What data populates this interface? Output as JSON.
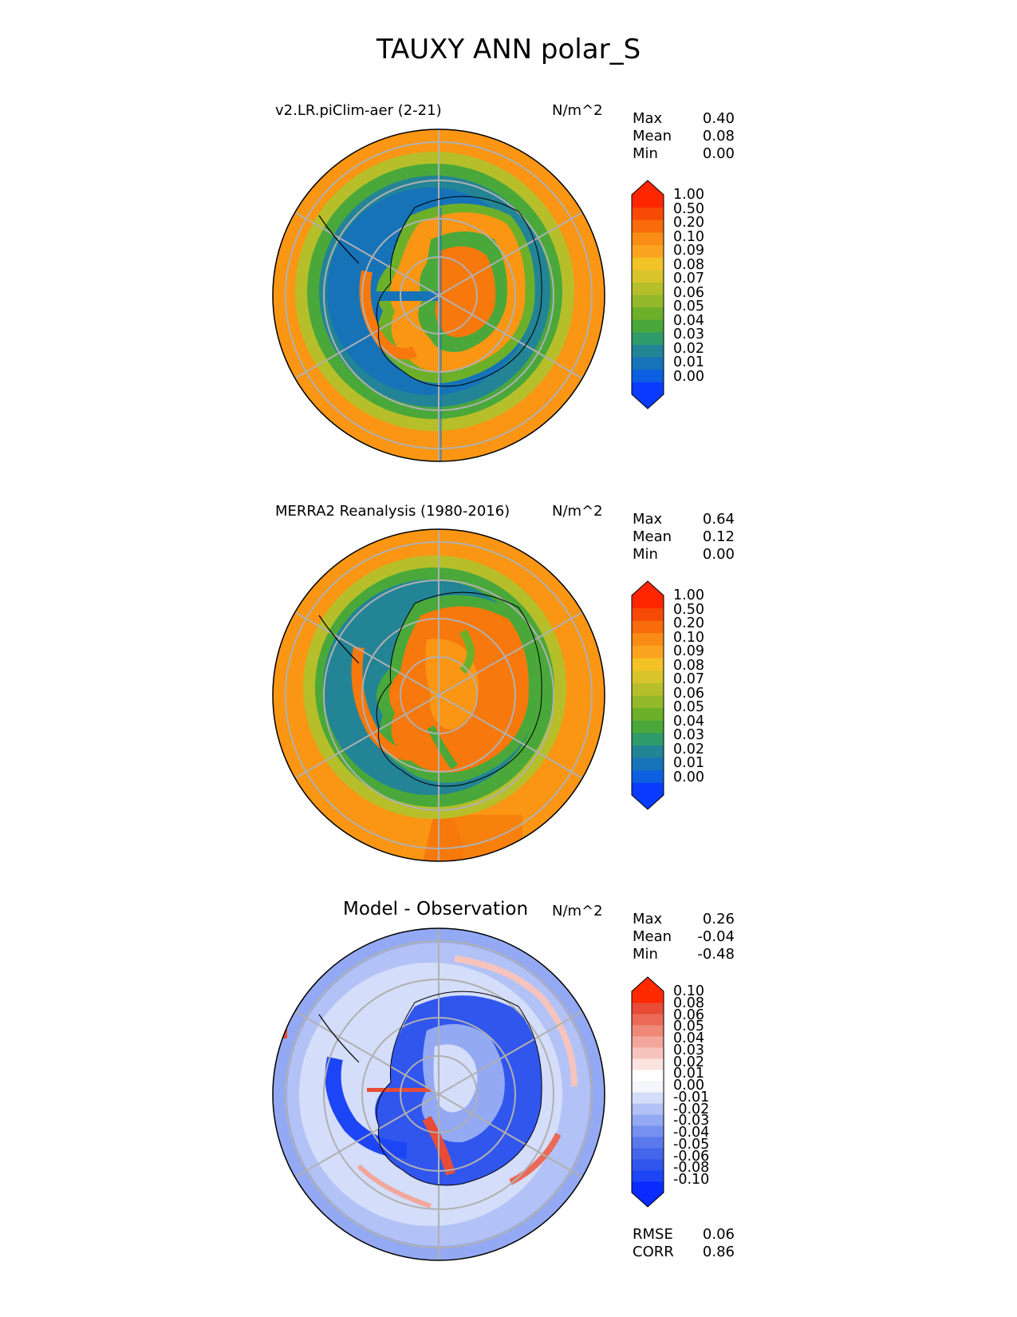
{
  "figure_title": "TAUXY ANN polar_S",
  "panels": [
    {
      "title": "v2.LR.piClim-aer (2-21)",
      "units": "N/m^2",
      "stats": [
        {
          "label": "Max",
          "value": "0.40"
        },
        {
          "label": "Mean",
          "value": "0.08"
        },
        {
          "label": "Min",
          "value": "0.00"
        }
      ],
      "colorbar_ticks": [
        "1.00",
        "0.50",
        "0.20",
        "0.10",
        "0.09",
        "0.08",
        "0.07",
        "0.06",
        "0.05",
        "0.04",
        "0.03",
        "0.02",
        "0.01",
        "0.00"
      ]
    },
    {
      "title": "MERRA2 Reanalysis (1980-2016)",
      "units": "N/m^2",
      "stats": [
        {
          "label": "Max",
          "value": "0.64"
        },
        {
          "label": "Mean",
          "value": "0.12"
        },
        {
          "label": "Min",
          "value": "0.00"
        }
      ],
      "colorbar_ticks": [
        "1.00",
        "0.50",
        "0.20",
        "0.10",
        "0.09",
        "0.08",
        "0.07",
        "0.06",
        "0.05",
        "0.04",
        "0.03",
        "0.02",
        "0.01",
        "0.00"
      ]
    },
    {
      "title": "Model - Observation",
      "units": "N/m^2",
      "stats": [
        {
          "label": "Max",
          "value": "0.26"
        },
        {
          "label": "Mean",
          "value": "-0.04"
        },
        {
          "label": "Min",
          "value": "-0.48"
        }
      ],
      "colorbar_ticks": [
        "0.10",
        "0.08",
        "0.06",
        "0.05",
        "0.04",
        "0.03",
        "0.02",
        "0.01",
        "0.00",
        "-0.01",
        "-0.02",
        "-0.03",
        "-0.04",
        "-0.05",
        "-0.06",
        "-0.08",
        "-0.10"
      ],
      "extra_stats": [
        {
          "label": "RMSE",
          "value": "0.06"
        },
        {
          "label": "CORR",
          "value": "0.86"
        }
      ]
    }
  ],
  "colors": {
    "field_cmap": [
      "#0a3bff",
      "#0b5fe0",
      "#1673b8",
      "#238496",
      "#2f9b6a",
      "#4aa83a",
      "#6cb02a",
      "#93b92a",
      "#b6bf2a",
      "#d8c42b",
      "#f2c227",
      "#fba31e",
      "#f98c15",
      "#f86c0c",
      "#f74a06",
      "#ff2600"
    ],
    "diff_cmap": [
      "#0a2bff",
      "#1c45f5",
      "#3056ee",
      "#4466ea",
      "#5a79ec",
      "#7590ef",
      "#93a9f3",
      "#b3c2f6",
      "#d4ddf9",
      "#f4f6fb",
      "#ffffff",
      "#fbe3e0",
      "#f7c4bd",
      "#f3a79c",
      "#ef8879",
      "#eb6a57",
      "#e84c36",
      "#ff2a00"
    ],
    "ocean_orange": "#fa9614",
    "land_orange": "#f7780c",
    "mid_green": "#5aa838",
    "deep_blue": "#1a6fc4"
  },
  "icons": [
    "map-graticule",
    "coastline"
  ]
}
